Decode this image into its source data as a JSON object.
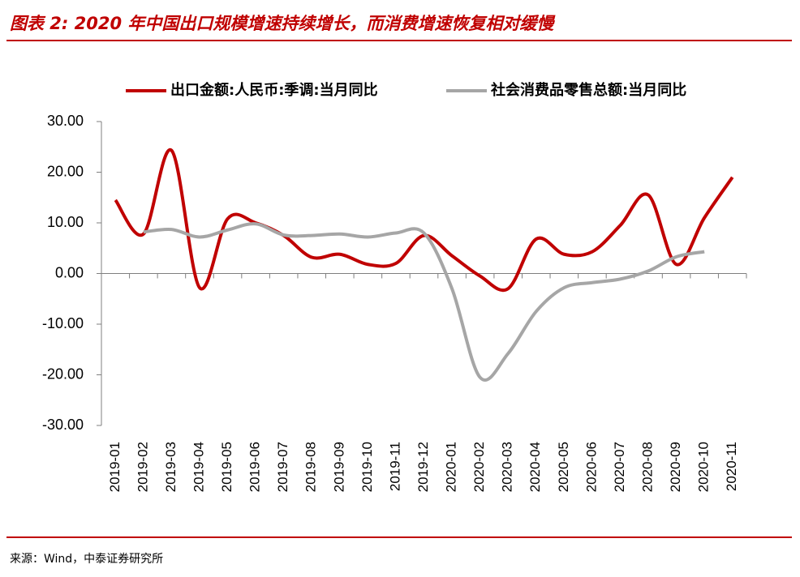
{
  "chart_data": {
    "type": "line",
    "title": "图表 2: 2020 年中国出口规模增速持续增长，而消费增速恢复相对缓慢",
    "source": "来源：Wind，中泰证券研究所",
    "categories": [
      "2019-01",
      "2019-02",
      "2019-03",
      "2019-04",
      "2019-05",
      "2019-06",
      "2019-07",
      "2019-08",
      "2019-09",
      "2019-10",
      "2019-11",
      "2019-12",
      "2020-01",
      "2020-02",
      "2020-03",
      "2020-04",
      "2020-05",
      "2020-06",
      "2020-07",
      "2020-08",
      "2020-09",
      "2020-10",
      "2020-11"
    ],
    "series": [
      {
        "name": "出口金额:人民币:季调:当月同比",
        "color": "#c00000",
        "values": [
          14.5,
          7.8,
          24.3,
          -2.8,
          10.8,
          10.0,
          7.5,
          3.2,
          3.8,
          1.8,
          2.0,
          7.5,
          3.5,
          -0.5,
          -3.0,
          6.8,
          3.8,
          4.3,
          9.5,
          15.5,
          1.8,
          11.0,
          19.0
        ]
      },
      {
        "name": "社会消费品零售总额:当月同比",
        "color": "#a6a6a6",
        "values": [
          null,
          8.2,
          8.7,
          7.2,
          8.6,
          9.8,
          7.6,
          7.5,
          7.8,
          7.2,
          8.0,
          8.0,
          -3.0,
          -20.5,
          -15.8,
          -7.5,
          -2.8,
          -1.8,
          -1.1,
          0.5,
          3.3,
          4.3,
          null
        ]
      }
    ],
    "ylim": [
      -30,
      30
    ],
    "yticks": [
      {
        "value": -30,
        "label": "-30.00"
      },
      {
        "value": -20,
        "label": "-20.00"
      },
      {
        "value": -10,
        "label": "-10.00"
      },
      {
        "value": 0,
        "label": "0.00"
      },
      {
        "value": 10,
        "label": "10.00"
      },
      {
        "value": 20,
        "label": "20.00"
      },
      {
        "value": 30,
        "label": "30.00"
      }
    ],
    "grid": false
  }
}
